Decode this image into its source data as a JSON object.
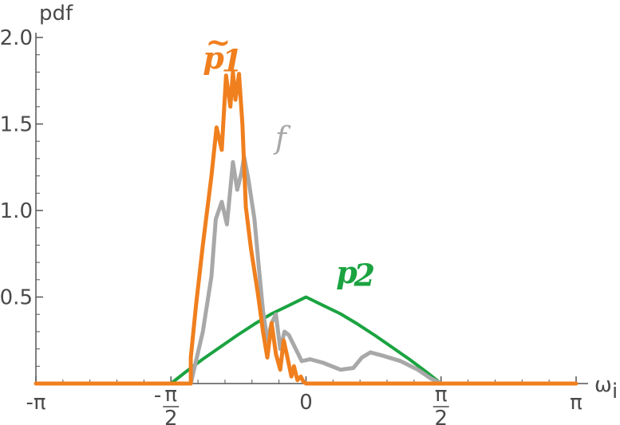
{
  "chart_data": {
    "type": "line",
    "title": "",
    "xlabel": "ω",
    "xlabel_sub": "i",
    "ylabel": "pdf",
    "xlim": [
      -3.14159,
      3.14159
    ],
    "ylim": [
      0,
      2.0
    ],
    "xticks": [
      {
        "value": -3.14159,
        "label": "-π"
      },
      {
        "value": -1.5708,
        "label": "-π/2"
      },
      {
        "value": 0,
        "label": "0"
      },
      {
        "value": 1.5708,
        "label": "π/2"
      },
      {
        "value": 3.14159,
        "label": "π"
      }
    ],
    "yticks": [
      {
        "value": 0.5,
        "label": "0.5"
      },
      {
        "value": 1.0,
        "label": "1.0"
      },
      {
        "value": 1.5,
        "label": "1.5"
      },
      {
        "value": 2.0,
        "label": "2.0"
      }
    ],
    "grid": false,
    "series": [
      {
        "name": "p2",
        "label_main": "p",
        "label_sub": "2",
        "color": "#1aa340",
        "x": [
          -3.14159,
          -1.5708,
          -1.4,
          -1.2,
          -1.0,
          -0.8,
          -0.6,
          -0.4,
          -0.2,
          0,
          0.2,
          0.4,
          0.6,
          0.8,
          1.0,
          1.2,
          1.4,
          1.5708,
          3.14159
        ],
        "y": [
          0,
          0,
          0.067,
          0.141,
          0.21,
          0.279,
          0.344,
          0.403,
          0.451,
          0.5,
          0.451,
          0.403,
          0.344,
          0.279,
          0.21,
          0.141,
          0.067,
          0,
          0
        ]
      },
      {
        "name": "f",
        "label_main": "f",
        "label_sub": "",
        "color": "#a8a8a8",
        "x": [
          -1.34,
          -1.2,
          -1.1,
          -1.05,
          -0.98,
          -0.92,
          -0.85,
          -0.8,
          -0.75,
          -0.72,
          -0.67,
          -0.6,
          -0.55,
          -0.5,
          -0.45,
          -0.4,
          -0.35,
          -0.3,
          -0.25,
          -0.2,
          -0.12,
          -0.05,
          0.05,
          0.2,
          0.4,
          0.55,
          0.65,
          0.75,
          0.9,
          1.1,
          1.3,
          1.45,
          1.5708
        ],
        "y": [
          0,
          0.3,
          0.62,
          0.95,
          1.05,
          0.92,
          1.28,
          1.12,
          1.22,
          1.31,
          1.18,
          0.95,
          0.68,
          0.42,
          0.25,
          0.35,
          0.4,
          0.2,
          0.3,
          0.28,
          0.2,
          0.13,
          0.14,
          0.12,
          0.08,
          0.09,
          0.15,
          0.18,
          0.16,
          0.13,
          0.08,
          0.03,
          0
        ]
      },
      {
        "name": "p̃1",
        "label_main": "p",
        "label_sub": "1",
        "label_accent": "~",
        "color": "#f07f1e",
        "x": [
          -3.14159,
          -1.34,
          -1.34,
          -1.28,
          -1.2,
          -1.1,
          -1.04,
          -0.98,
          -0.93,
          -0.88,
          -0.85,
          -0.82,
          -0.78,
          -0.74,
          -0.7,
          -0.64,
          -0.56,
          -0.5,
          -0.45,
          -0.4,
          -0.35,
          -0.3,
          -0.26,
          -0.22,
          -0.17,
          -0.14,
          -0.1,
          -0.06,
          -0.03,
          0.0,
          3.14159
        ],
        "y": [
          0,
          0,
          0.15,
          0.45,
          0.8,
          1.2,
          1.48,
          1.35,
          1.78,
          1.6,
          1.8,
          1.64,
          1.79,
          1.5,
          1.02,
          0.78,
          0.52,
          0.3,
          0.15,
          0.35,
          0.17,
          0.08,
          0.25,
          0.16,
          0.04,
          0.1,
          0.02,
          0.04,
          0.01,
          0,
          0
        ]
      }
    ]
  }
}
